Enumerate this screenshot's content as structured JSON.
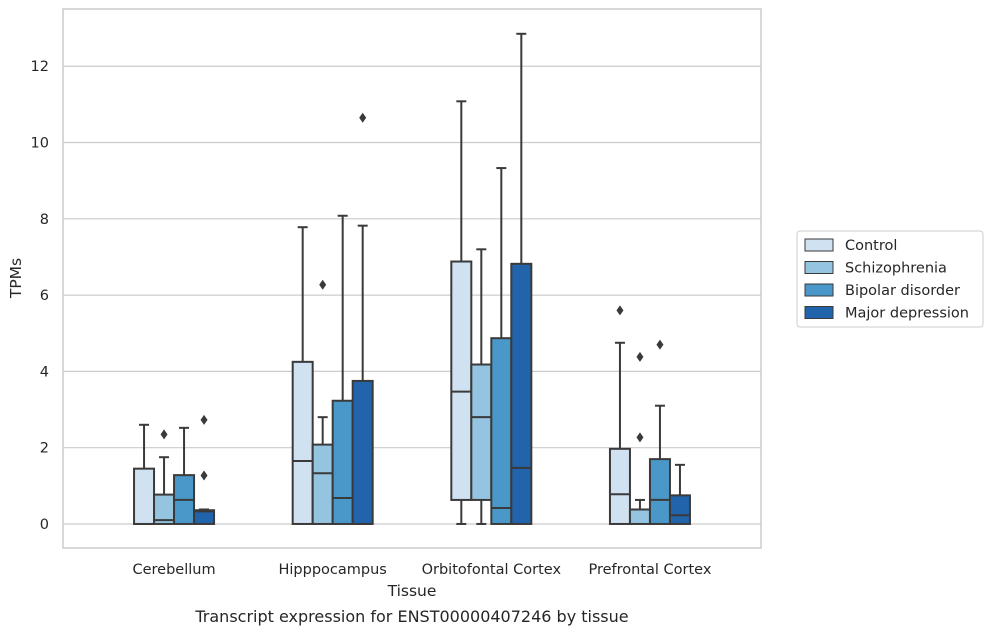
{
  "chart_data": {
    "type": "box",
    "title": "",
    "caption": "Transcript expression for ENST00000407246 by tissue",
    "xlabel": "Tissue",
    "ylabel": "TPMs",
    "ylim": [
      -0.63,
      13.5
    ],
    "yticks": [
      0,
      2,
      4,
      6,
      8,
      10,
      12
    ],
    "grid": true,
    "legend_position": "outside-right",
    "categories": [
      "Cerebellum",
      "Hipppocampus",
      "Orbitofontal Cortex",
      "Prefrontal Cortex"
    ],
    "series": [
      {
        "name": "Control",
        "color": "#d0e1f2",
        "boxes": [
          {
            "whislo": 0,
            "q1": 0,
            "med": 0,
            "q3": 1.45,
            "whishi": 2.6,
            "fliers": []
          },
          {
            "whislo": 0,
            "q1": 0,
            "med": 1.65,
            "q3": 4.25,
            "whishi": 7.78,
            "fliers": []
          },
          {
            "whislo": 0,
            "q1": 0.63,
            "med": 3.47,
            "q3": 6.88,
            "whishi": 11.08,
            "fliers": []
          },
          {
            "whislo": 0,
            "q1": 0,
            "med": 0.78,
            "q3": 1.97,
            "whishi": 4.75,
            "fliers": [
              5.6
            ]
          }
        ]
      },
      {
        "name": "Schizophrenia",
        "color": "#94c4df",
        "boxes": [
          {
            "whislo": 0,
            "q1": 0,
            "med": 0.1,
            "q3": 0.77,
            "whishi": 1.75,
            "fliers": [
              2.35
            ]
          },
          {
            "whislo": 0,
            "q1": 0,
            "med": 1.33,
            "q3": 2.08,
            "whishi": 2.8,
            "fliers": [
              6.27
            ]
          },
          {
            "whislo": 0,
            "q1": 0.63,
            "med": 2.8,
            "q3": 4.18,
            "whishi": 7.2,
            "fliers": []
          },
          {
            "whislo": 0,
            "q1": 0,
            "med": 0.38,
            "q3": 0.38,
            "whishi": 0.63,
            "fliers": [
              2.27,
              4.38
            ]
          }
        ]
      },
      {
        "name": "Bipolar disorder",
        "color": "#4a98c9",
        "boxes": [
          {
            "whislo": 0,
            "q1": 0,
            "med": 0.63,
            "q3": 1.28,
            "whishi": 2.52,
            "fliers": []
          },
          {
            "whislo": 0,
            "q1": 0,
            "med": 0.68,
            "q3": 3.23,
            "whishi": 8.08,
            "fliers": []
          },
          {
            "whislo": 0,
            "q1": 0,
            "med": 0.42,
            "q3": 4.87,
            "whishi": 9.33,
            "fliers": []
          },
          {
            "whislo": 0,
            "q1": 0,
            "med": 0.63,
            "q3": 1.7,
            "whishi": 3.1,
            "fliers": [
              4.7
            ]
          }
        ]
      },
      {
        "name": "Major depression",
        "color": "#2164ab",
        "boxes": [
          {
            "whislo": 0,
            "q1": 0,
            "med": 0.33,
            "q3": 0.36,
            "whishi": 0.38,
            "fliers": [
              1.27,
              2.73
            ]
          },
          {
            "whislo": 0,
            "q1": 0,
            "med": 0,
            "q3": 3.75,
            "whishi": 7.82,
            "fliers": [
              10.65
            ]
          },
          {
            "whislo": 0,
            "q1": 0,
            "med": 1.47,
            "q3": 6.82,
            "whishi": 12.85,
            "fliers": []
          },
          {
            "whislo": 0,
            "q1": 0,
            "med": 0.23,
            "q3": 0.75,
            "whishi": 1.55,
            "fliers": []
          }
        ]
      }
    ],
    "colors": {
      "edge": "#3a3a3a",
      "grid": "#cccccc",
      "frame": "#cccccc",
      "legend_border": "#cccccc"
    }
  }
}
